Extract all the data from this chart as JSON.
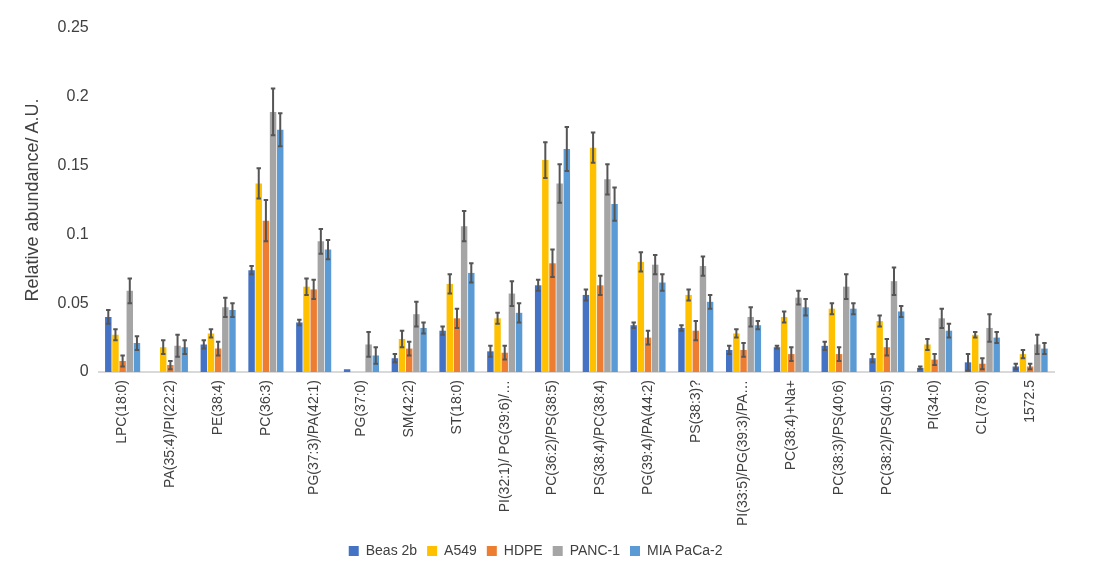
{
  "chart_data": {
    "type": "bar",
    "ylabel": "Relative abundance/ A.U.",
    "categories": [
      "LPC(18:0)",
      "PA(35:4)/PI(22:2)",
      "PE(38:4)",
      "PC(36:3)",
      "PG(37:3)/PA(42:1)",
      "PG(37:0)",
      "SM(42:2)",
      "ST(18:0)",
      "PI(32:1)/ PG(39:6)/…",
      "PC(36:2)/PS(38:5)",
      "PS(38:4)/PC(38:4)",
      "PG(39:4)/PA(44:2)",
      "PS(38:3)?",
      "PI(33:5)/PG(39:3)/PA…",
      "PC(38:4)+Na+",
      "PC(38:3)/PS(40:6)",
      "PC(38:2)/PS(40:5)",
      "PI(34:0)",
      "CL(78:0)",
      "1572.5"
    ],
    "series": [
      {
        "name": "Beas 2b",
        "color": "#4472c4",
        "values": [
          0.04,
          0,
          0.02,
          0.074,
          0.036,
          0.002,
          0.01,
          0.03,
          0.015,
          0.063,
          0.056,
          0.034,
          0.032,
          0.016,
          0.018,
          0.019,
          0.01,
          0.003,
          0.007,
          0.004
        ],
        "errors": [
          0.005,
          null,
          0.003,
          0.003,
          0.002,
          null,
          0.003,
          0.003,
          0.004,
          0.004,
          0.004,
          0.002,
          0.002,
          0.003,
          0.001,
          0.003,
          0.003,
          0.001,
          0.006,
          0.002
        ]
      },
      {
        "name": "A549",
        "color": "#ffc000",
        "values": [
          0.027,
          0.018,
          0.028,
          0.137,
          0.062,
          0,
          0.024,
          0.064,
          0.039,
          0.154,
          0.163,
          0.08,
          0.056,
          0.028,
          0.04,
          0.046,
          0.037,
          0.02,
          0.027,
          0.013
        ],
        "errors": [
          0.004,
          0.005,
          0.003,
          0.011,
          0.006,
          null,
          0.006,
          0.007,
          0.004,
          0.013,
          0.011,
          0.007,
          0.004,
          0.003,
          0.004,
          0.004,
          0.004,
          0.004,
          0.002,
          0.003
        ]
      },
      {
        "name": "HDPE",
        "color": "#ed7d31",
        "values": [
          0.008,
          0.005,
          0.017,
          0.11,
          0.06,
          0,
          0.017,
          0.039,
          0.014,
          0.079,
          0.063,
          0.025,
          0.03,
          0.016,
          0.013,
          0.013,
          0.018,
          0.009,
          0.006,
          0.004
        ],
        "errors": [
          0.004,
          0.003,
          0.005,
          0.015,
          0.007,
          null,
          0.005,
          0.007,
          0.005,
          0.01,
          0.007,
          0.005,
          0.007,
          0.005,
          0.005,
          0.005,
          0.006,
          0.004,
          0.004,
          0.002
        ]
      },
      {
        "name": "PANC-1",
        "color": "#a5a5a5",
        "values": [
          0.059,
          0.019,
          0.047,
          0.189,
          0.095,
          0.02,
          0.042,
          0.106,
          0.057,
          0.137,
          0.14,
          0.078,
          0.077,
          0.04,
          0.054,
          0.062,
          0.066,
          0.039,
          0.032,
          0.02
        ],
        "errors": [
          0.009,
          0.008,
          0.007,
          0.017,
          0.009,
          0.009,
          0.009,
          0.011,
          0.009,
          0.014,
          0.011,
          0.007,
          0.007,
          0.007,
          0.005,
          0.009,
          0.01,
          0.007,
          0.01,
          0.007
        ]
      },
      {
        "name": "MIA PaCa-2",
        "color": "#5b9bd5",
        "values": [
          0.021,
          0.018,
          0.045,
          0.176,
          0.089,
          0.012,
          0.032,
          0.072,
          0.043,
          0.162,
          0.122,
          0.065,
          0.051,
          0.034,
          0.047,
          0.046,
          0.044,
          0.03,
          0.025,
          0.017
        ],
        "errors": [
          0.005,
          0.005,
          0.005,
          0.012,
          0.007,
          0.006,
          0.004,
          0.007,
          0.007,
          0.016,
          0.012,
          0.006,
          0.005,
          0.003,
          0.006,
          0.004,
          0.004,
          0.005,
          0.004,
          0.004
        ]
      }
    ],
    "ylim": [
      0,
      0.25
    ],
    "yticks": [
      0,
      0.05,
      0.1,
      0.15,
      0.2,
      0.25
    ],
    "grid": false,
    "legend": "bottom"
  }
}
